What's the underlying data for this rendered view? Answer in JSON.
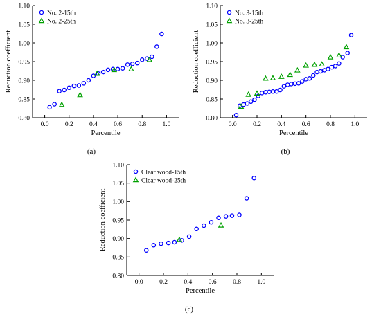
{
  "chart_data": [
    {
      "type": "scatter",
      "panel_label": "(a)",
      "xlabel": "Percentile",
      "ylabel": "Reduction coefficient",
      "xlim": [
        -0.1,
        1.1
      ],
      "ylim": [
        0.8,
        1.1
      ],
      "xticks": [
        "0.0",
        "0.2",
        "0.4",
        "0.6",
        "0.8",
        "1.0"
      ],
      "yticks": [
        "0.80",
        "0.85",
        "0.90",
        "0.95",
        "1.00",
        "1.05",
        "1.10"
      ],
      "legend_position": "top-left",
      "series": [
        {
          "name": "No. 2-15th",
          "marker": "circle",
          "color": "#0000ff",
          "x": [
            0.04,
            0.08,
            0.12,
            0.16,
            0.2,
            0.24,
            0.28,
            0.32,
            0.36,
            0.4,
            0.44,
            0.48,
            0.52,
            0.56,
            0.6,
            0.64,
            0.68,
            0.72,
            0.76,
            0.8,
            0.84,
            0.88,
            0.92,
            0.96
          ],
          "y": [
            0.828,
            0.836,
            0.871,
            0.874,
            0.88,
            0.885,
            0.886,
            0.892,
            0.9,
            0.912,
            0.918,
            0.922,
            0.928,
            0.93,
            0.93,
            0.932,
            0.942,
            0.944,
            0.946,
            0.955,
            0.958,
            0.963,
            0.99,
            1.024
          ]
        },
        {
          "name": "No. 2-25th",
          "marker": "triangle",
          "color": "#00a000",
          "x": [
            0.14,
            0.29,
            0.43,
            0.57,
            0.71,
            0.86
          ],
          "y": [
            0.835,
            0.861,
            0.918,
            0.928,
            0.93,
            0.955
          ]
        }
      ]
    },
    {
      "type": "scatter",
      "panel_label": "(b)",
      "xlabel": "Percentile",
      "ylabel": "Reduction coefficient",
      "xlim": [
        -0.1,
        1.1
      ],
      "ylim": [
        0.8,
        1.1
      ],
      "xticks": [
        "0.0",
        "0.2",
        "0.4",
        "0.6",
        "0.8",
        "1.0"
      ],
      "yticks": [
        "0.80",
        "0.85",
        "0.90",
        "0.95",
        "1.00",
        "1.05",
        "1.10"
      ],
      "legend_position": "top-left",
      "series": [
        {
          "name": "No. 3-15th",
          "marker": "circle",
          "color": "#0000ff",
          "x": [
            0.03,
            0.06,
            0.09,
            0.12,
            0.15,
            0.18,
            0.21,
            0.24,
            0.27,
            0.3,
            0.33,
            0.36,
            0.39,
            0.42,
            0.45,
            0.48,
            0.51,
            0.54,
            0.57,
            0.6,
            0.63,
            0.66,
            0.69,
            0.72,
            0.75,
            0.78,
            0.81,
            0.84,
            0.87,
            0.9,
            0.94,
            0.97
          ],
          "y": [
            0.807,
            0.832,
            0.835,
            0.838,
            0.843,
            0.848,
            0.858,
            0.866,
            0.868,
            0.869,
            0.87,
            0.87,
            0.874,
            0.884,
            0.888,
            0.89,
            0.891,
            0.892,
            0.897,
            0.903,
            0.905,
            0.913,
            0.922,
            0.924,
            0.927,
            0.93,
            0.935,
            0.938,
            0.945,
            0.962,
            0.973,
            1.021
          ]
        },
        {
          "name": "No. 3-25th",
          "marker": "triangle",
          "color": "#00a000",
          "x": [
            0.07,
            0.13,
            0.2,
            0.27,
            0.33,
            0.4,
            0.47,
            0.53,
            0.6,
            0.67,
            0.73,
            0.8,
            0.87,
            0.93
          ],
          "y": [
            0.83,
            0.862,
            0.865,
            0.905,
            0.906,
            0.91,
            0.915,
            0.927,
            0.94,
            0.942,
            0.943,
            0.962,
            0.967,
            0.989
          ]
        }
      ]
    },
    {
      "type": "scatter",
      "panel_label": "(c)",
      "xlabel": "Percentile",
      "ylabel": "Reduction coefficient",
      "xlim": [
        -0.1,
        1.1
      ],
      "ylim": [
        0.8,
        1.1
      ],
      "xticks": [
        "0.0",
        "0.2",
        "0.4",
        "0.6",
        "0.8",
        "1.0"
      ],
      "yticks": [
        "0.80",
        "0.85",
        "0.90",
        "0.95",
        "1.00",
        "1.05",
        "1.10"
      ],
      "legend_position": "top-left",
      "series": [
        {
          "name": "Clear wood-15th",
          "marker": "circle",
          "color": "#0000ff",
          "x": [
            0.06,
            0.12,
            0.18,
            0.24,
            0.29,
            0.35,
            0.41,
            0.47,
            0.53,
            0.59,
            0.65,
            0.71,
            0.76,
            0.82,
            0.88,
            0.94
          ],
          "y": [
            0.868,
            0.882,
            0.886,
            0.888,
            0.89,
            0.895,
            0.905,
            0.926,
            0.935,
            0.944,
            0.956,
            0.96,
            0.962,
            0.964,
            1.009,
            1.064
          ]
        },
        {
          "name": "Clear wood-25th",
          "marker": "triangle",
          "color": "#00a000",
          "x": [
            0.33,
            0.67
          ],
          "y": [
            0.897,
            0.936
          ]
        }
      ]
    }
  ]
}
